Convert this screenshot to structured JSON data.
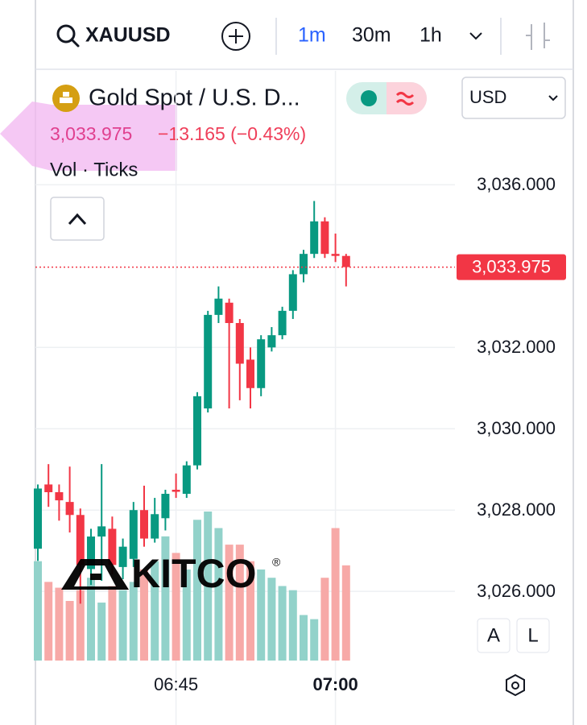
{
  "toolbar": {
    "symbol": "XAUUSD",
    "intervals": [
      "1m",
      "30m",
      "1h"
    ]
  },
  "header": {
    "title": "Gold Spot / U.S. D...",
    "currency": "USD",
    "price": "3,033.975",
    "change": "−13.165 (−0.43%)",
    "indicator": "Vol · Ticks"
  },
  "watermark": {
    "text": "KITCO",
    "mark": "®"
  },
  "buttons": {
    "auto": "A",
    "log": "L"
  },
  "chart_data": {
    "type": "candlestick",
    "categories": [
      null,
      null,
      null,
      null,
      null,
      null,
      null,
      null,
      null,
      null,
      null,
      null,
      null,
      "06:45",
      null,
      null,
      null,
      null,
      null,
      null,
      null,
      null,
      null,
      null,
      null,
      null,
      null,
      null,
      "07:00",
      null
    ],
    "open": [
      3027.05,
      3028.63,
      3028.44,
      3028.2,
      3027.88,
      3026.55,
      3027.35,
      3027.54,
      3026.6,
      3026.8,
      3028.0,
      3027.3,
      3027.8,
      3028.5,
      3028.4,
      3029.1,
      3030.5,
      3032.8,
      3033.1,
      3032.6,
      3031.7,
      3031.0,
      3032.0,
      3032.3,
      3032.9,
      3033.8,
      3034.3,
      3035.1,
      3034.3,
      3034.25
    ],
    "high": [
      3028.63,
      3029.13,
      3028.63,
      3029.07,
      3028.04,
      3027.54,
      3029.13,
      3027.84,
      3027.3,
      3028.2,
      3028.6,
      3028.3,
      3028.5,
      3028.9,
      3029.2,
      3030.9,
      3032.9,
      3033.5,
      3033.2,
      3032.7,
      3032.0,
      3032.3,
      3032.5,
      3033.0,
      3033.9,
      3034.4,
      3035.6,
      3035.2,
      3034.8,
      3034.3
    ],
    "low": [
      3026.75,
      3028.08,
      3027.74,
      3027.45,
      3025.7,
      3026.16,
      3026.26,
      3026.42,
      3026.3,
      3026.6,
      3027.1,
      3027.2,
      3027.5,
      3028.3,
      3028.3,
      3029.0,
      3030.4,
      3032.6,
      3030.5,
      3030.7,
      3030.5,
      3030.8,
      3031.9,
      3032.2,
      3032.7,
      3033.6,
      3034.2,
      3034.2,
      3034.1,
      3033.5
    ],
    "close": [
      3028.53,
      3028.44,
      3028.24,
      3027.88,
      3026.65,
      3027.35,
      3027.6,
      3026.65,
      3027.1,
      3028.0,
      3027.3,
      3027.9,
      3028.4,
      3028.45,
      3029.1,
      3030.8,
      3032.8,
      3033.2,
      3032.6,
      3031.6,
      3031.0,
      3032.2,
      3032.3,
      3032.9,
      3033.8,
      3034.3,
      3035.1,
      3034.3,
      3034.25,
      3033.975
    ],
    "volume": [
      120,
      95,
      88,
      72,
      85,
      100,
      70,
      90,
      85,
      95,
      110,
      120,
      150,
      130,
      110,
      170,
      180,
      160,
      140,
      140,
      120,
      110,
      100,
      90,
      85,
      55,
      50,
      100,
      160,
      115
    ],
    "up_color": "#089981",
    "down_color": "#f23645",
    "up_volume_color": "#92d2ca",
    "down_volume_color": "#f7a9a7",
    "ylim": [
      3024.3,
      3038.8
    ],
    "yticks": [
      {
        "value": 3036,
        "label": "3,036.000"
      },
      {
        "value": 3032,
        "label": "3,032.000"
      },
      {
        "value": 3030,
        "label": "3,030.000"
      },
      {
        "value": 3028,
        "label": "3,028.000"
      },
      {
        "value": 3026,
        "label": "3,026.000"
      }
    ],
    "price_line": {
      "value": 3033.975,
      "label": "3,033.975"
    },
    "grid": true
  }
}
